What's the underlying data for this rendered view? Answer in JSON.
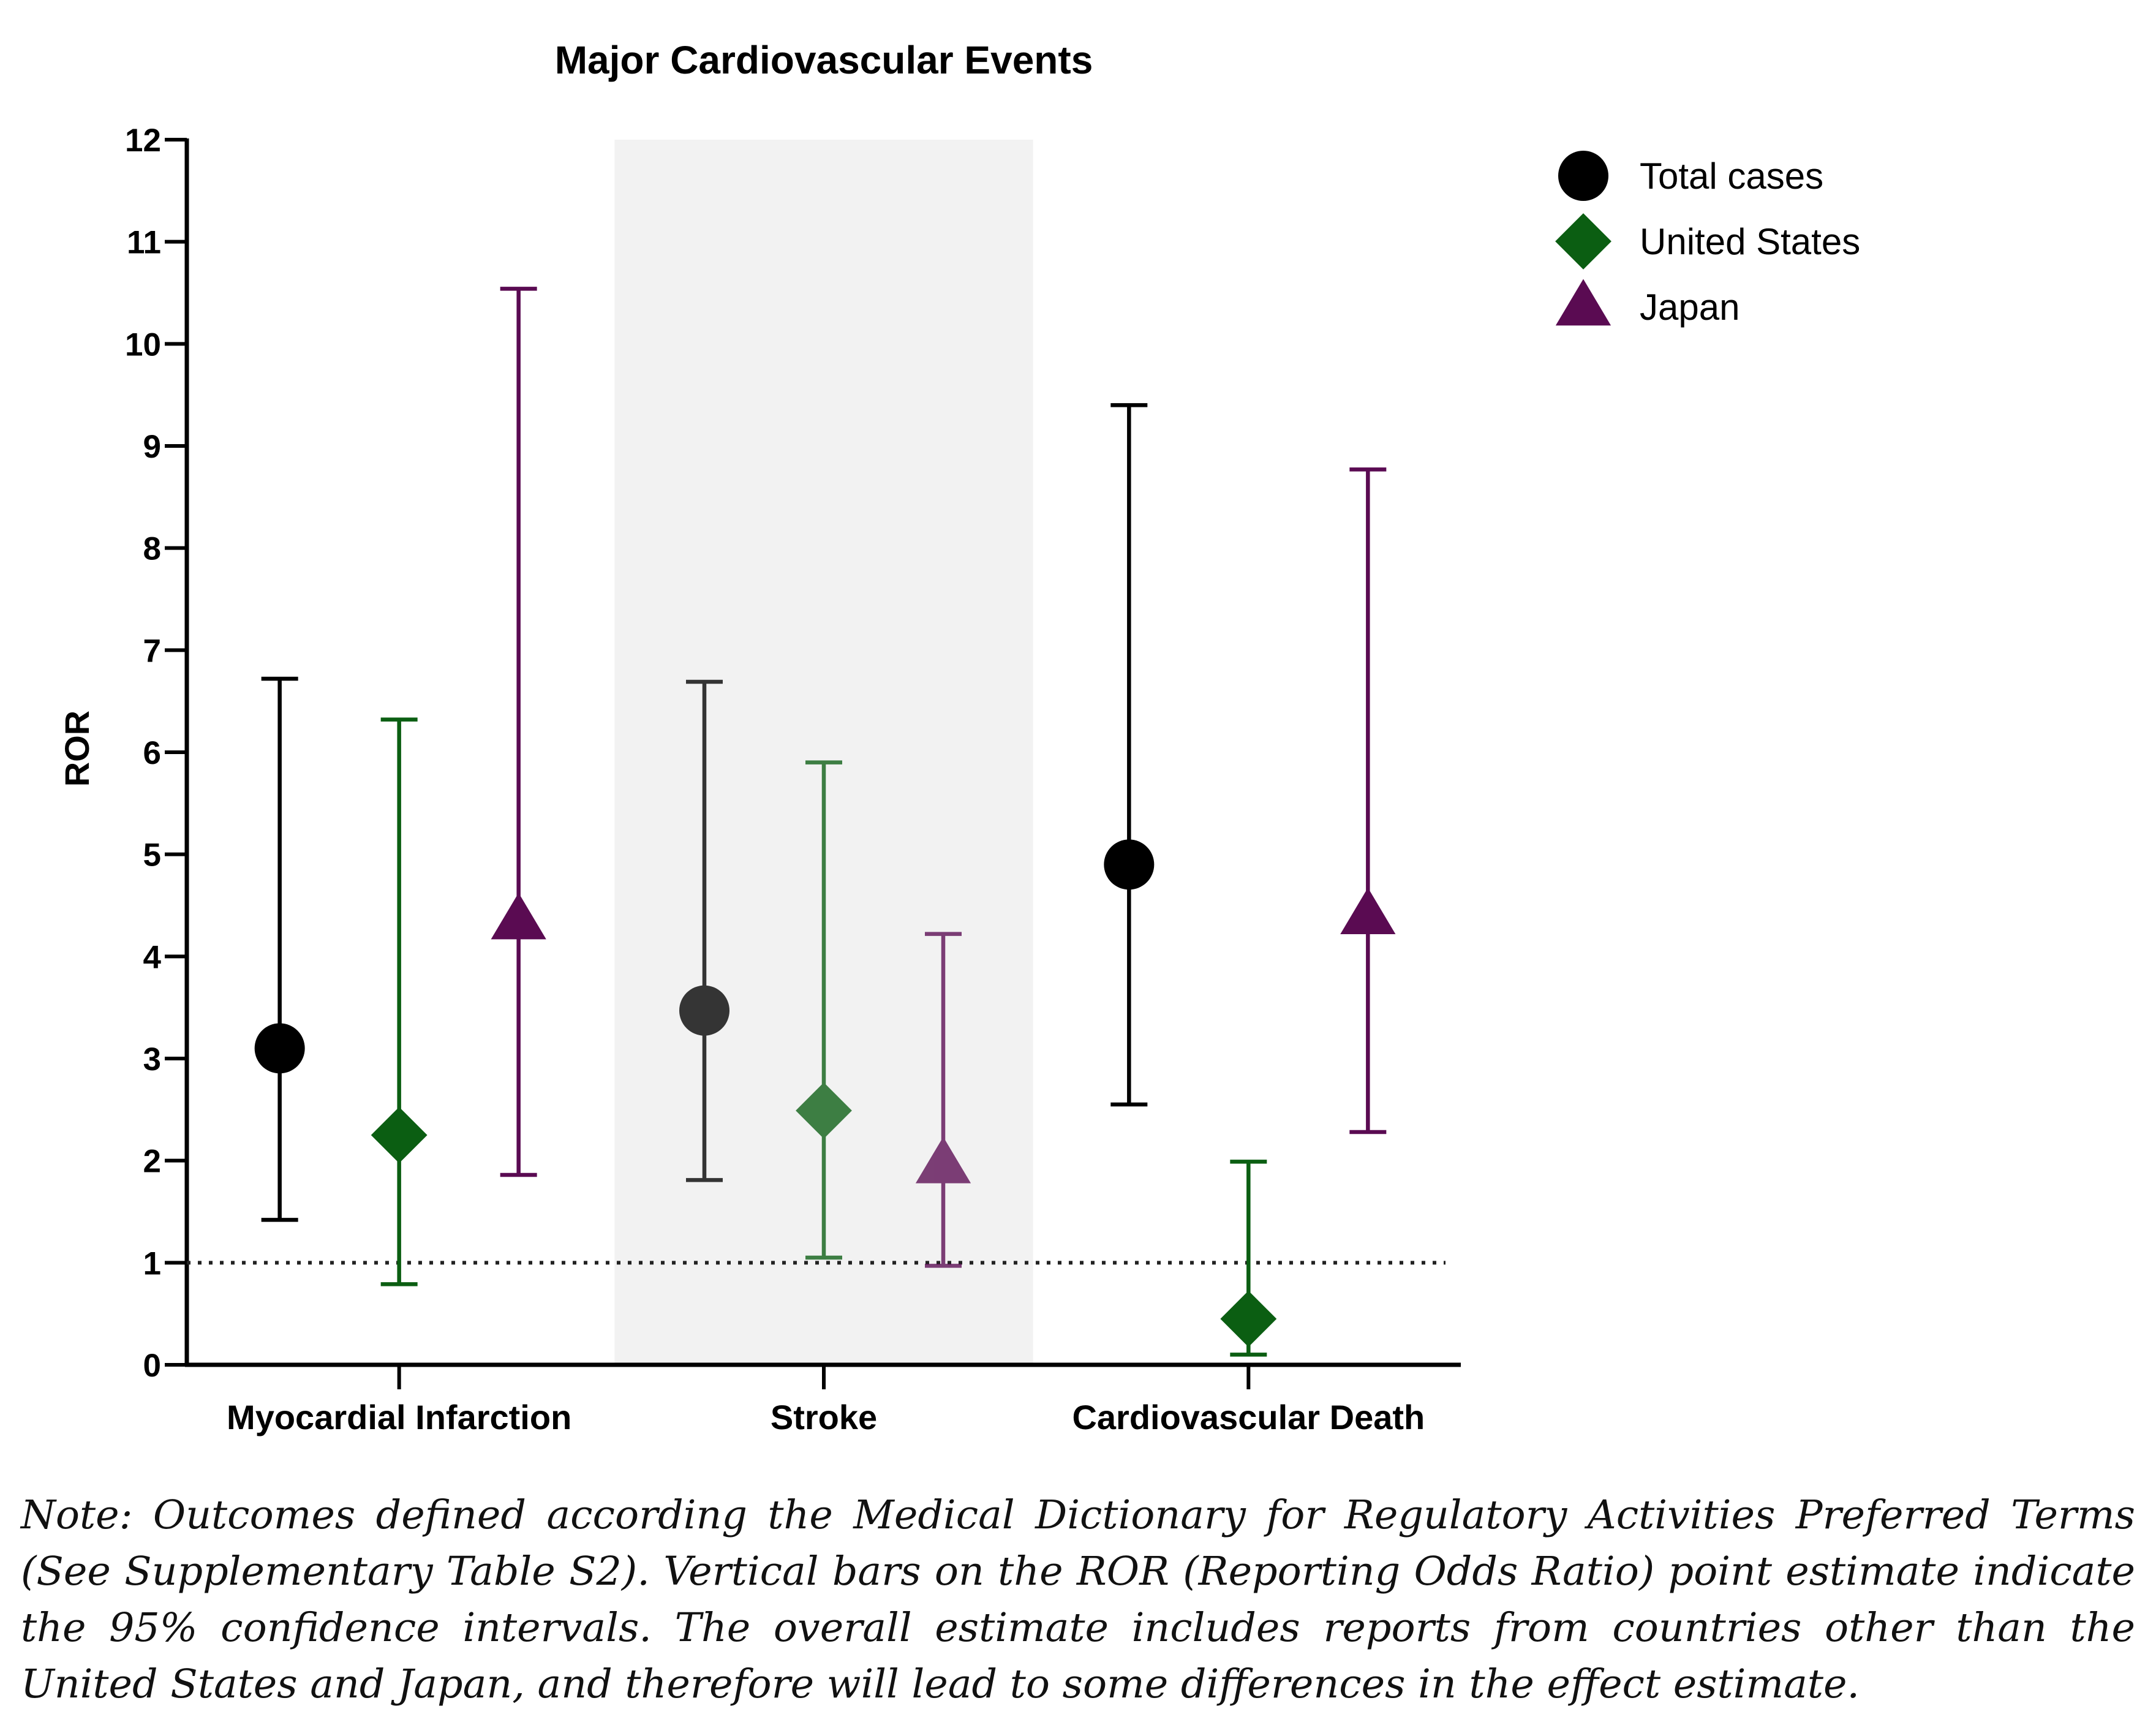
{
  "chart_data": {
    "type": "scatter",
    "title": "Major Cardiovascular Events",
    "ylabel": "ROR",
    "xlabel": "",
    "ylim": [
      0,
      12
    ],
    "yticks": [
      0,
      1,
      2,
      3,
      4,
      5,
      6,
      7,
      8,
      9,
      10,
      11,
      12
    ],
    "categories": [
      "Myocardial Infarction",
      "Stroke",
      "Cardiovascular Death"
    ],
    "highlighted_category": "Stroke",
    "reference_line": 1,
    "legend_position": "top-right",
    "series": [
      {
        "name": "Total cases",
        "marker": "circle",
        "color": "#000000",
        "points": [
          {
            "category": "Myocardial Infarction",
            "value": 3.1,
            "ci_low": 1.42,
            "ci_high": 6.72
          },
          {
            "category": "Stroke",
            "value": 3.47,
            "ci_low": 1.81,
            "ci_high": 6.69
          },
          {
            "category": "Cardiovascular Death",
            "value": 4.9,
            "ci_low": 2.55,
            "ci_high": 9.4
          }
        ]
      },
      {
        "name": "United States",
        "marker": "diamond",
        "color": "#0b5e12",
        "points": [
          {
            "category": "Myocardial Infarction",
            "value": 2.25,
            "ci_low": 0.79,
            "ci_high": 6.32
          },
          {
            "category": "Stroke",
            "value": 2.49,
            "ci_low": 1.05,
            "ci_high": 5.9
          },
          {
            "category": "Cardiovascular Death",
            "value": 0.45,
            "ci_low": 0.1,
            "ci_high": 1.99
          }
        ]
      },
      {
        "name": "Japan",
        "marker": "triangle",
        "color": "#5a0b52",
        "points": [
          {
            "category": "Myocardial Infarction",
            "value": 4.35,
            "ci_low": 1.86,
            "ci_high": 10.54
          },
          {
            "category": "Stroke",
            "value": 1.96,
            "ci_low": 0.97,
            "ci_high": 4.22
          },
          {
            "category": "Cardiovascular Death",
            "value": 4.4,
            "ci_low": 2.28,
            "ci_high": 8.77
          }
        ]
      }
    ]
  },
  "note": "Note: Outcomes defined according the Medical Dictionary for Regulatory Activities Preferred Terms (See Supplementary Table S2). Vertical bars on the ROR (Reporting Odds Ratio) point estimate indicate the 95% confidence intervals. The overall estimate includes reports from countries other than the United States and Japan, and therefore will lead to some differences in the effect estimate."
}
